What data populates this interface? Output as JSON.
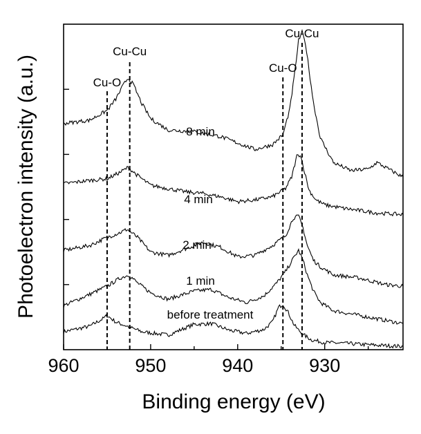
{
  "chart_data": {
    "type": "line",
    "title": "",
    "xlabel": "Binding energy (eV)",
    "ylabel": "Photoelectron intensity (a.u.)",
    "xlim": [
      960,
      921
    ],
    "x_reversed": true,
    "ylim": [
      0,
      10
    ],
    "x_ticks": [
      960,
      950,
      940,
      930
    ],
    "y_tick_labels_shown": false,
    "grid": false,
    "reference_lines": [
      {
        "label": "Cu-O",
        "x": 955.0
      },
      {
        "label": "Cu-Cu",
        "x": 952.4
      },
      {
        "label": "Cu-O",
        "x": 934.8
      },
      {
        "label": "Cu-Cu",
        "x": 932.6
      }
    ],
    "series": [
      {
        "name": "before treatment",
        "x": [
          960,
          957,
          955.5,
          955,
          954,
          952.5,
          951,
          948,
          945,
          943,
          941,
          939,
          937,
          936,
          935.3,
          934.8,
          934.2,
          933.5,
          933,
          932.4,
          931.5,
          930,
          928,
          925,
          921
        ],
        "values": [
          0.55,
          0.72,
          0.95,
          1.05,
          0.85,
          0.7,
          0.55,
          0.45,
          0.78,
          0.8,
          0.6,
          0.5,
          0.62,
          0.85,
          1.3,
          1.4,
          1.15,
          0.75,
          0.6,
          0.45,
          0.3,
          0.22,
          0.2,
          0.15,
          0.1
        ]
      },
      {
        "name": "1 min",
        "x": [
          960,
          957,
          955,
          953.5,
          952.5,
          951.5,
          950,
          948,
          945,
          943,
          941,
          939,
          937,
          935.5,
          934.5,
          933.5,
          933,
          932.5,
          932,
          931.3,
          930.5,
          929,
          926,
          923,
          921
        ],
        "values": [
          1.35,
          1.7,
          1.95,
          2.2,
          2.3,
          2.05,
          1.75,
          1.55,
          1.8,
          1.85,
          1.6,
          1.45,
          1.65,
          2.05,
          2.4,
          2.85,
          3.05,
          2.75,
          2.3,
          1.8,
          1.45,
          1.2,
          1.05,
          0.9,
          0.8
        ]
      },
      {
        "name": "2 min",
        "x": [
          960,
          957,
          955,
          953.5,
          952.7,
          951.5,
          950,
          948,
          946,
          944,
          942,
          940,
          938,
          936,
          934.5,
          933.6,
          933,
          932.5,
          932,
          931.3,
          930.5,
          929,
          926,
          923,
          921
        ],
        "values": [
          3.05,
          3.2,
          3.45,
          3.6,
          3.7,
          3.45,
          3.0,
          2.9,
          3.1,
          3.3,
          3.15,
          2.85,
          2.9,
          3.2,
          3.5,
          4.05,
          4.1,
          3.75,
          3.2,
          2.75,
          2.55,
          2.3,
          2.2,
          2.0,
          1.95
        ]
      },
      {
        "name": "4 min",
        "x": [
          960,
          957,
          955,
          953.5,
          952.6,
          951.5,
          950,
          948,
          946,
          944,
          942,
          940,
          938,
          936,
          934.5,
          933.8,
          933.2,
          932.8,
          932.3,
          931.8,
          931,
          930,
          928,
          924,
          921
        ],
        "values": [
          5.1,
          5.2,
          5.25,
          5.45,
          5.6,
          5.35,
          5.05,
          4.95,
          4.85,
          4.8,
          4.7,
          4.55,
          4.6,
          4.7,
          4.95,
          5.3,
          5.95,
          6.0,
          5.45,
          4.9,
          4.6,
          4.45,
          4.35,
          4.2,
          4.15
        ]
      },
      {
        "name": "8 min",
        "x": [
          960,
          957,
          955,
          954,
          953.2,
          952.6,
          952,
          951,
          950,
          948,
          945,
          942,
          940,
          938,
          936,
          934.8,
          934,
          933.4,
          933.0,
          932.6,
          932.2,
          931.8,
          931.3,
          930.5,
          929,
          927,
          925,
          924,
          923,
          921
        ],
        "values": [
          6.95,
          7.05,
          7.35,
          7.7,
          8.1,
          8.35,
          8.15,
          7.55,
          7.1,
          6.75,
          6.7,
          6.55,
          6.35,
          6.15,
          6.3,
          6.6,
          7.4,
          8.6,
          9.5,
          9.75,
          9.4,
          8.6,
          7.6,
          6.5,
          5.75,
          5.5,
          5.55,
          5.75,
          5.6,
          5.3
        ]
      }
    ]
  }
}
